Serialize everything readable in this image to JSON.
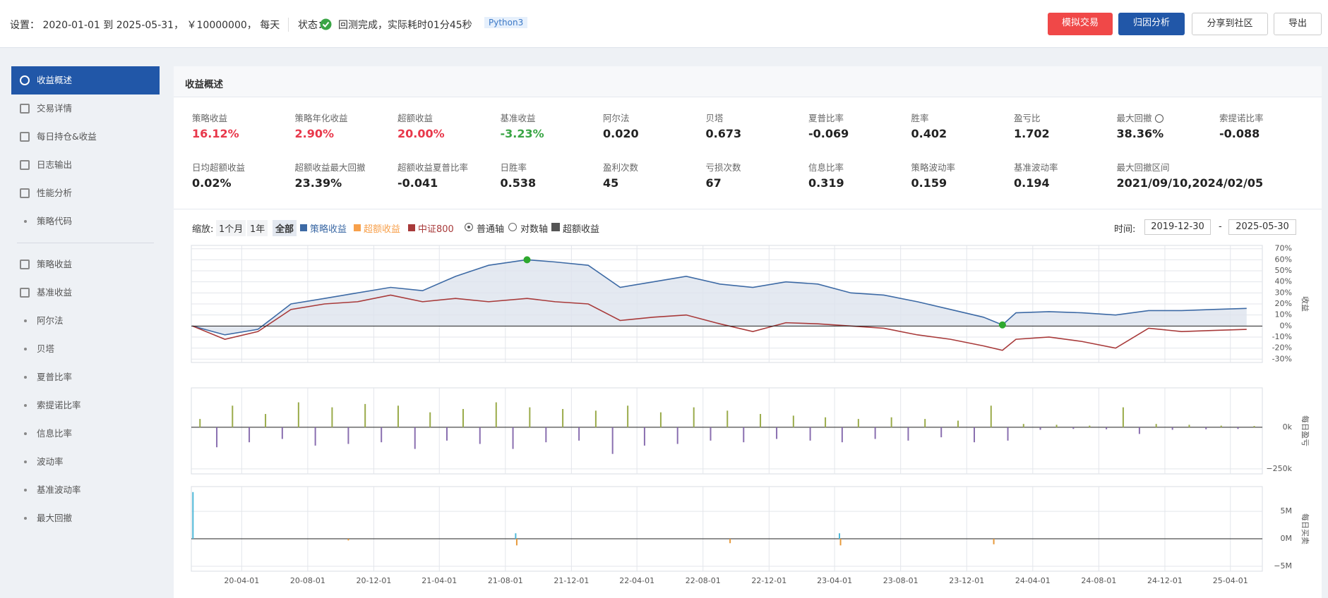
{
  "header": {
    "settings": "设置： 2020-01-01 到 2025-05-31， ￥10000000， 每天",
    "status_label": "状态：",
    "status": "回测完成，实际耗时01分45秒",
    "badge": "Python3",
    "buttons": [
      "模拟交易",
      "归因分析",
      "分享到社区",
      "导出"
    ]
  },
  "sidebar": {
    "groups": [
      [
        {
          "label": "收益概述",
          "active": true
        },
        {
          "label": "交易详情"
        },
        {
          "label": "每日持仓&收益"
        },
        {
          "label": "日志输出"
        },
        {
          "label": "性能分析"
        },
        {
          "label": "策略代码",
          "sub": true
        }
      ],
      [
        {
          "label": "策略收益"
        },
        {
          "label": "基准收益"
        },
        {
          "label": "阿尔法",
          "sub": true
        },
        {
          "label": "贝塔",
          "sub": true
        },
        {
          "label": "夏普比率",
          "sub": true
        },
        {
          "label": "索提诺比率",
          "sub": true
        },
        {
          "label": "信息比率",
          "sub": true
        },
        {
          "label": "波动率",
          "sub": true
        },
        {
          "label": "基准波动率",
          "sub": true
        },
        {
          "label": "最大回撤",
          "sub": true
        }
      ]
    ]
  },
  "panel": {
    "title": "收益概述",
    "metrics": [
      {
        "label": "策略收益",
        "value": "16.12%",
        "color": "#e8374a"
      },
      {
        "label": "策略年化收益",
        "value": "2.90%",
        "color": "#e8374a"
      },
      {
        "label": "超额收益",
        "value": "20.00%",
        "color": "#e8374a"
      },
      {
        "label": "基准收益",
        "value": "-3.23%",
        "color": "#3aa545"
      },
      {
        "label": "阿尔法",
        "value": "0.020"
      },
      {
        "label": "贝塔",
        "value": "0.673"
      },
      {
        "label": "夏普比率",
        "value": "-0.069"
      },
      {
        "label": "胜率",
        "value": "0.402"
      },
      {
        "label": "盈亏比",
        "value": "1.702"
      },
      {
        "label": "最大回撤",
        "value": "38.36%",
        "help": true
      },
      {
        "label": "索提诺比率",
        "value": "-0.088"
      },
      {
        "label": "日均超额收益",
        "value": "0.02%"
      },
      {
        "label": "超额收益最大回撤",
        "value": "23.39%"
      },
      {
        "label": "超额收益夏普比率",
        "value": "-0.041"
      },
      {
        "label": "日胜率",
        "value": "0.538"
      },
      {
        "label": "盈利次数",
        "value": "45"
      },
      {
        "label": "亏损次数",
        "value": "67"
      },
      {
        "label": "信息比率",
        "value": "0.319"
      },
      {
        "label": "策略波动率",
        "value": "0.159"
      },
      {
        "label": "基准波动率",
        "value": "0.194"
      },
      {
        "label": "最大回撤区间",
        "value": "2021/09/10,2024/02/05"
      }
    ]
  },
  "toolbar": {
    "zoom_label": "缩放:",
    "zoom": [
      "1个月",
      "1年",
      "全部"
    ],
    "zoom_active": 2,
    "axis_options": [
      "普通轴",
      "对数轴"
    ],
    "axis_checked": 0,
    "time_label": "时间:",
    "time_start": "2019-12-30",
    "time_sep": "-",
    "time_end": "2025-05-30"
  },
  "xticks": [
    "20-04-01",
    "20-08-01",
    "20-12-01",
    "21-04-01",
    "21-08-01",
    "21-12-01",
    "22-04-01",
    "22-08-01",
    "22-12-01",
    "23-04-01",
    "23-08-01",
    "23-12-01",
    "24-04-01",
    "24-08-01",
    "24-12-01",
    "25-04-01"
  ],
  "charts": [
    {
      "type": "line",
      "axis_label": "收益",
      "ylim": [
        -33,
        73
      ],
      "yticks": [
        {
          "value": 70,
          "label": "70%"
        },
        {
          "value": 60,
          "label": "60%"
        },
        {
          "value": 50,
          "label": "50%"
        },
        {
          "value": 40,
          "label": "40%"
        },
        {
          "value": 30,
          "label": "30%"
        },
        {
          "value": 20,
          "label": "20%"
        },
        {
          "value": 10,
          "label": "10%"
        },
        {
          "value": 0,
          "label": "0%"
        },
        {
          "value": -10,
          "label": "-10%"
        },
        {
          "value": -20,
          "label": "-20%"
        },
        {
          "value": -30,
          "label": "-30%"
        }
      ],
      "x": [
        "20-01-01",
        "20-03-01",
        "20-05-01",
        "20-07-01",
        "20-09-01",
        "20-11-01",
        "21-01-01",
        "21-03-01",
        "21-05-01",
        "21-07-01",
        "21-09-10",
        "21-11-01",
        "22-01-01",
        "22-03-01",
        "22-05-01",
        "22-07-01",
        "22-09-01",
        "22-11-01",
        "23-01-01",
        "23-03-01",
        "23-05-01",
        "23-07-01",
        "23-09-01",
        "23-11-01",
        "24-01-01",
        "24-02-05",
        "24-03-01",
        "24-05-01",
        "24-07-01",
        "24-09-01",
        "24-11-01",
        "25-01-01",
        "25-03-01",
        "25-05-01"
      ],
      "series": [
        {
          "name": "策略收益",
          "color": "#3d6aa5",
          "values": [
            0,
            -8,
            -3,
            20,
            25,
            30,
            35,
            32,
            45,
            55,
            60,
            58,
            55,
            35,
            40,
            45,
            38,
            35,
            40,
            38,
            30,
            28,
            22,
            15,
            8,
            1,
            12,
            13,
            12,
            10,
            14,
            14,
            15,
            16
          ]
        },
        {
          "name": "中证800",
          "color": "#a83a3a",
          "values": [
            0,
            -12,
            -5,
            15,
            20,
            22,
            28,
            22,
            25,
            22,
            25,
            22,
            20,
            5,
            8,
            10,
            2,
            -5,
            3,
            2,
            0,
            -2,
            -8,
            -12,
            -18,
            -22,
            -12,
            -10,
            -14,
            -20,
            -2,
            -5,
            -4,
            -3
          ]
        }
      ],
      "area": {
        "name": "超额收益",
        "color": "#f7a04b",
        "fill": "#dde3ee"
      },
      "markers": {
        "color": "#2ea82e",
        "x": [
          "21-09-10",
          "24-02-05"
        ],
        "values": [
          60,
          1
        ]
      }
    },
    {
      "type": "bar",
      "axis_label": "每日盈亏",
      "ylim": [
        -280000,
        237000
      ],
      "yticks": [
        {
          "value": 0,
          "label": "0k"
        },
        {
          "value": -250000,
          "label": "−250k"
        }
      ],
      "colors": [
        "#9aab4a",
        "#8a6fb0"
      ],
      "x": [
        "20-01-15",
        "20-02-15",
        "20-03-15",
        "20-04-15",
        "20-05-15",
        "20-06-15",
        "20-07-15",
        "20-08-15",
        "20-09-15",
        "20-10-15",
        "20-11-15",
        "20-12-15",
        "21-01-15",
        "21-02-15",
        "21-03-15",
        "21-04-15",
        "21-05-15",
        "21-06-15",
        "21-07-15",
        "21-08-15",
        "21-09-15",
        "21-10-15",
        "21-11-15",
        "21-12-15",
        "22-01-15",
        "22-02-15",
        "22-03-15",
        "22-04-15",
        "22-05-15",
        "22-06-15",
        "22-07-15",
        "22-08-15",
        "22-09-15",
        "22-10-15",
        "22-11-15",
        "22-12-15",
        "23-01-15",
        "23-02-15",
        "23-03-15",
        "23-04-15",
        "23-05-15",
        "23-06-15",
        "23-07-15",
        "23-08-15",
        "23-09-15",
        "23-10-15",
        "23-11-15",
        "23-12-15",
        "24-01-15",
        "24-02-15",
        "24-03-15",
        "24-04-15",
        "24-05-15",
        "24-06-15",
        "24-07-15",
        "24-08-15",
        "24-09-15",
        "24-10-15",
        "24-11-15",
        "24-12-15",
        "25-01-15",
        "25-02-15",
        "25-03-15",
        "25-04-15",
        "25-05-15"
      ],
      "values": [
        50000,
        -120000,
        130000,
        -90000,
        80000,
        -70000,
        150000,
        -110000,
        120000,
        -100000,
        140000,
        -90000,
        130000,
        -130000,
        90000,
        -80000,
        110000,
        -100000,
        150000,
        -130000,
        120000,
        -90000,
        110000,
        -80000,
        100000,
        -160000,
        130000,
        -110000,
        90000,
        -100000,
        120000,
        -80000,
        100000,
        -90000,
        80000,
        -70000,
        70000,
        -80000,
        60000,
        -90000,
        50000,
        -70000,
        60000,
        -80000,
        50000,
        -60000,
        40000,
        -90000,
        130000,
        -80000,
        20000,
        -15000,
        15000,
        -10000,
        10000,
        -12000,
        120000,
        -40000,
        20000,
        -15000,
        15000,
        -12000,
        10000,
        -10000,
        8000
      ]
    },
    {
      "type": "bar",
      "axis_label": "每日买卖",
      "ylim": [
        -5900000,
        9500000
      ],
      "yticks": [
        {
          "value": 5000000,
          "label": "5M"
        },
        {
          "value": 0,
          "label": "0M"
        },
        {
          "value": -5000000,
          "label": "−5M"
        }
      ],
      "colors": [
        "#4fb8d8",
        "#e79a3c"
      ],
      "x": [
        "20-01-02",
        "20-10-15",
        "21-08-20",
        "21-08-22",
        "22-09-20",
        "23-04-10",
        "23-04-12",
        "24-01-20"
      ],
      "values": [
        8500000,
        -300000,
        1000000,
        -1200000,
        -800000,
        1000000,
        -1200000,
        -1000000
      ]
    }
  ]
}
